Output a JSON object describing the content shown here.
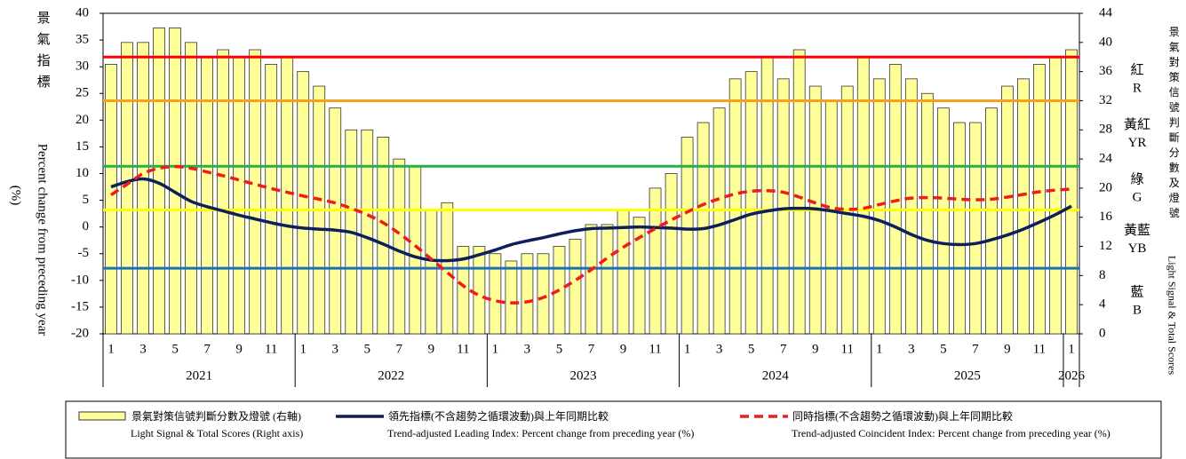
{
  "chart_data": {
    "type": "combo",
    "y_label_zh": "景氣指標",
    "y_label": "Percent change from preceding year",
    "y_unit": "(%)",
    "y2_label_zh": "景氣對策信號判斷分數及燈號",
    "y2_label": "Light Signal & Total Scores",
    "ylim": [
      -20,
      40
    ],
    "yticks": [
      -20,
      -15,
      -10,
      -5,
      0,
      5,
      10,
      15,
      20,
      25,
      30,
      35,
      40
    ],
    "y2lim": [
      0,
      44
    ],
    "y2ticks": [
      0,
      4,
      8,
      12,
      16,
      20,
      24,
      28,
      32,
      36,
      40,
      44
    ],
    "grid": false,
    "categories": [
      "1",
      null,
      "3",
      null,
      "5",
      null,
      "7",
      null,
      "9",
      null,
      "11",
      null,
      "1",
      null,
      "3",
      null,
      "5",
      null,
      "7",
      null,
      "9",
      null,
      "11",
      null,
      "1",
      null,
      "3",
      null,
      "5",
      null,
      "7",
      null,
      "9",
      null,
      "11",
      null,
      "1",
      null,
      "3",
      null,
      "5",
      null,
      "7",
      null,
      "9",
      null,
      "11",
      null,
      "1",
      null,
      "3",
      null,
      "5",
      null,
      "7",
      null,
      "9",
      null,
      "11",
      null,
      "1"
    ],
    "years": [
      "2021",
      "2022",
      "2023",
      "2024",
      "2025",
      "2026"
    ],
    "series": [
      {
        "name": "景氣對策信號判斷分數及燈號 (右軸)",
        "name_en": "Light Signal & Total Scores (Right axis)",
        "type": "bar",
        "axis": "y2",
        "color": "#ffff99",
        "values": [
          37,
          40,
          40,
          42,
          42,
          40,
          38,
          39,
          38,
          39,
          37,
          38,
          36,
          34,
          31,
          28,
          28,
          27,
          24,
          23,
          17,
          18,
          12,
          12,
          11,
          10,
          11,
          11,
          12,
          13,
          15,
          15,
          17,
          16,
          20,
          22,
          27,
          29,
          31,
          35,
          36,
          38,
          35,
          39,
          34,
          32,
          34,
          38,
          35,
          37,
          35,
          33,
          31,
          29,
          29,
          31,
          34,
          35,
          37,
          38,
          39
        ]
      },
      {
        "name": "領先指標(不含趨勢之循環波動)與上年同期比較",
        "name_en": "Trend-adjusted Leading Index: Percent change from preceding year (%)",
        "type": "line",
        "color": "#0d1f5c",
        "values": [
          7.5,
          8.5,
          9,
          8.2,
          6.5,
          4.8,
          3.8,
          3,
          2.2,
          1.5,
          0.8,
          0.2,
          -0.2,
          -0.4,
          -0.6,
          -1,
          -2,
          -3.2,
          -4.5,
          -5.6,
          -6.2,
          -6.3,
          -6,
          -5.2,
          -4.3,
          -3.3,
          -2.6,
          -2,
          -1.3,
          -0.7,
          -0.3,
          -0.2,
          -0.1,
          0,
          -0.1,
          -0.2,
          -0.4,
          -0.3,
          0.4,
          1.4,
          2.4,
          3,
          3.4,
          3.5,
          3.4,
          3,
          2.5,
          2,
          1.2,
          0,
          -1.4,
          -2.5,
          -3.1,
          -3.3,
          -3.1,
          -2.4,
          -1.5,
          -0.4,
          0.9,
          2.3,
          3.9
        ]
      },
      {
        "name": "同時指標(不含趨勢之循環波動)與上年同期比較",
        "name_en": "Trend-adjusted Coincident Index: Percent change from preceding year (%)",
        "type": "dashed-line",
        "color": "#ee1c1c",
        "values": [
          6,
          8,
          10,
          11,
          11.3,
          11,
          10.3,
          9.6,
          8.8,
          8,
          7.2,
          6.5,
          5.8,
          5.2,
          4.5,
          3.5,
          2.3,
          0.8,
          -1.2,
          -3.5,
          -6,
          -8.5,
          -11,
          -12.8,
          -13.8,
          -14.2,
          -14,
          -13.2,
          -11.8,
          -10,
          -8,
          -5.8,
          -3.8,
          -2,
          -0.3,
          1.3,
          2.8,
          4.2,
          5.3,
          6.2,
          6.7,
          6.8,
          6.5,
          5.6,
          4.5,
          3.6,
          3.3,
          3.5,
          4.2,
          4.9,
          5.4,
          5.5,
          5.4,
          5.2,
          5.1,
          5.2,
          5.6,
          6.1,
          6.6,
          6.9,
          7.1
        ]
      }
    ],
    "signal_thresholds": [
      {
        "value": 38,
        "color": "#ff0000"
      },
      {
        "value": 32,
        "color": "#f4a21e"
      },
      {
        "value": 23,
        "color": "#22b14c"
      },
      {
        "value": 17,
        "color": "#ffff00"
      },
      {
        "value": 9,
        "color": "#1f6fb5"
      }
    ],
    "signal_labels": [
      {
        "zh": "紅",
        "en": "R"
      },
      {
        "zh": "黃紅",
        "en": "YR"
      },
      {
        "zh": "綠",
        "en": "G"
      },
      {
        "zh": "黃藍",
        "en": "YB"
      },
      {
        "zh": "藍",
        "en": "B"
      }
    ]
  }
}
